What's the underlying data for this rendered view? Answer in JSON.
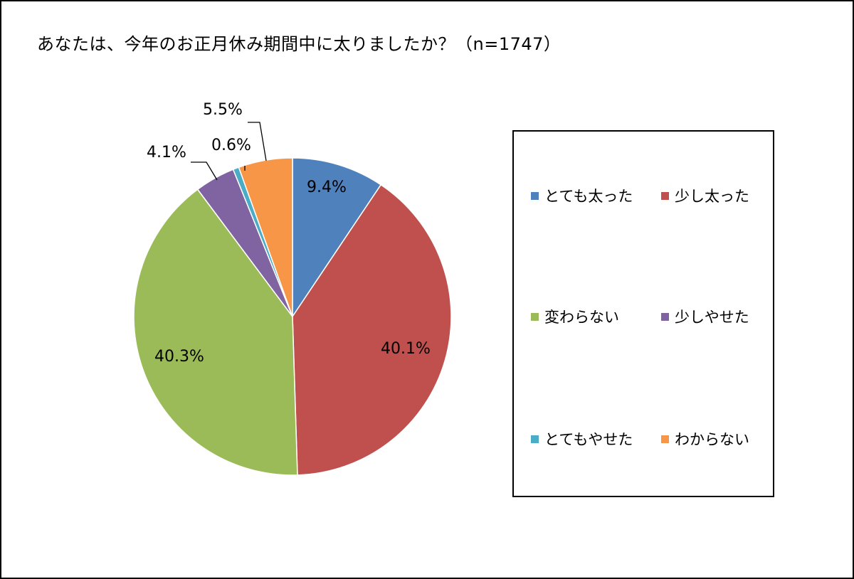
{
  "title": "あなたは、今年のお正月休み期間中に太りましたか？（n=1747）",
  "chart_data": {
    "type": "pie",
    "title": "あなたは、今年のお正月休み期間中に太りましたか？（n=1747）",
    "legend_position": "right",
    "start_angle": "12 o'clock, clockwise",
    "slices": [
      {
        "label": "とても太った",
        "value": 9.4,
        "display": "9.4%",
        "color": "#4F81BD"
      },
      {
        "label": "少し太った",
        "value": 40.1,
        "display": "40.1%",
        "color": "#C0504D"
      },
      {
        "label": "変わらない",
        "value": 40.3,
        "display": "40.3%",
        "color": "#9BBB59"
      },
      {
        "label": "少しやせた",
        "value": 4.1,
        "display": "4.1%",
        "color": "#8064A2"
      },
      {
        "label": "とてもやせた",
        "value": 0.6,
        "display": "0.6%",
        "color": "#4BACC6"
      },
      {
        "label": "わからない",
        "value": 5.5,
        "display": "5.5%",
        "color": "#F79646"
      }
    ]
  }
}
